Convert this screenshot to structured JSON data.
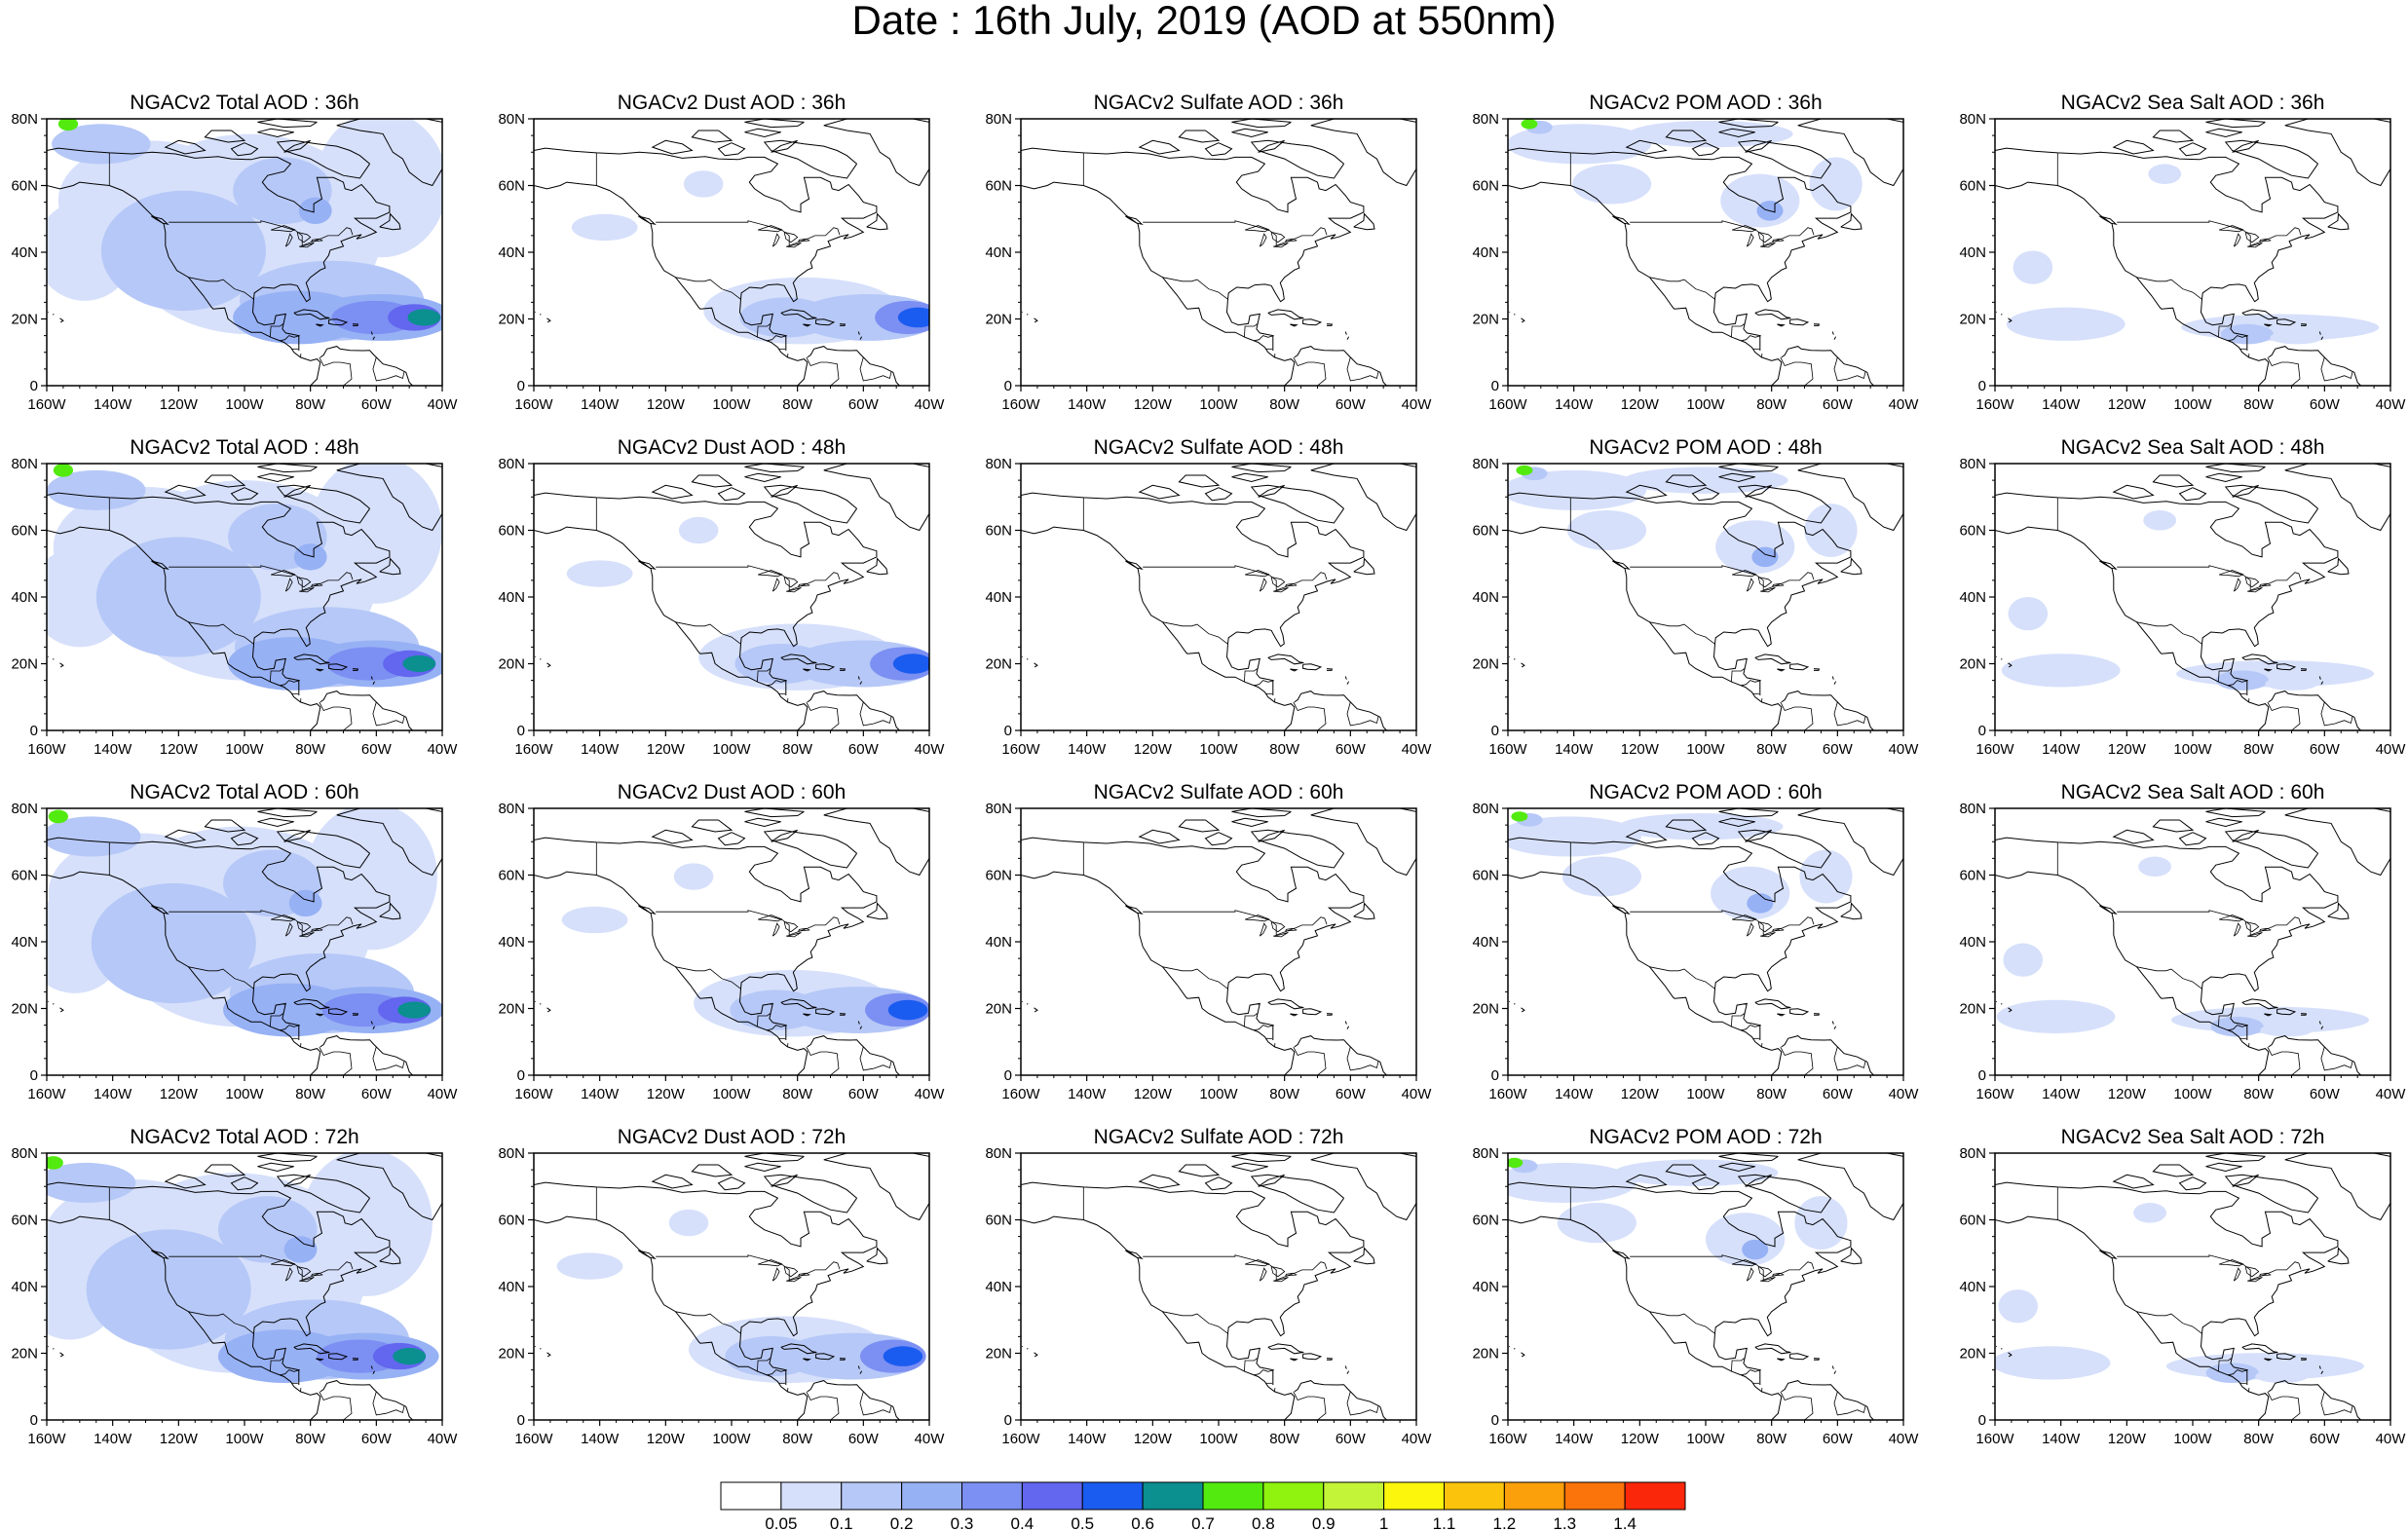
{
  "title": "Date : 16th July, 2019 (AOD at 550nm)",
  "lon_ticks": [
    "160W",
    "140W",
    "120W",
    "100W",
    "80W",
    "60W",
    "40W"
  ],
  "lat_ticks": [
    "80N",
    "60N",
    "40N",
    "20N",
    "0"
  ],
  "extent": {
    "lon": [
      -160,
      -40
    ],
    "lat": [
      0,
      80
    ]
  },
  "forecast_hours": [
    "36h",
    "48h",
    "60h",
    "72h"
  ],
  "species": [
    {
      "key": "total",
      "intensity": 1.0
    },
    {
      "key": "dust",
      "intensity": 0.8
    },
    {
      "key": "sulfate",
      "intensity": 0.0
    },
    {
      "key": "pom",
      "intensity": 0.45
    },
    {
      "key": "seasalt",
      "intensity": 0.35
    }
  ],
  "panel_titles": [
    [
      "NGACv2 Total AOD : 36h",
      "NGACv2 Dust AOD : 36h",
      "NGACv2 Sulfate AOD : 36h",
      "NGACv2 POM AOD : 36h",
      "NGACv2 Sea Salt AOD : 36h"
    ],
    [
      "NGACv2 Total AOD : 48h",
      "NGACv2 Dust AOD : 48h",
      "NGACv2 Sulfate AOD : 48h",
      "NGACv2 POM AOD : 48h",
      "NGACv2 Sea Salt AOD : 48h"
    ],
    [
      "NGACv2 Total AOD : 60h",
      "NGACv2 Dust AOD : 60h",
      "NGACv2 Sulfate AOD : 60h",
      "NGACv2 POM AOD : 60h",
      "NGACv2 Sea Salt AOD : 60h"
    ],
    [
      "NGACv2 Total AOD : 72h",
      "NGACv2 Dust AOD : 72h",
      "NGACv2 Sulfate AOD : 72h",
      "NGACv2 POM AOD : 72h",
      "NGACv2 Sea Salt  AOD : 72h"
    ]
  ],
  "colorbar": {
    "colors": [
      "#ffffff",
      "#d6e0fb",
      "#b6c8f7",
      "#97b1f5",
      "#7c8ff2",
      "#6366ee",
      "#1b5cf0",
      "#0b8f8f",
      "#53ea0f",
      "#8ff20f",
      "#c3f437",
      "#fbf60b",
      "#fbc30b",
      "#fb9f0b",
      "#fb730b",
      "#fb270b"
    ],
    "labels": [
      "0.05",
      "0.1",
      "0.2",
      "0.3",
      "0.4",
      "0.5",
      "0.6",
      "0.7",
      "0.8",
      "0.9",
      "1",
      "1.1",
      "1.2",
      "1.3",
      "1.4"
    ]
  },
  "colors": {
    "coast": "#000000",
    "frame": "#000000"
  }
}
